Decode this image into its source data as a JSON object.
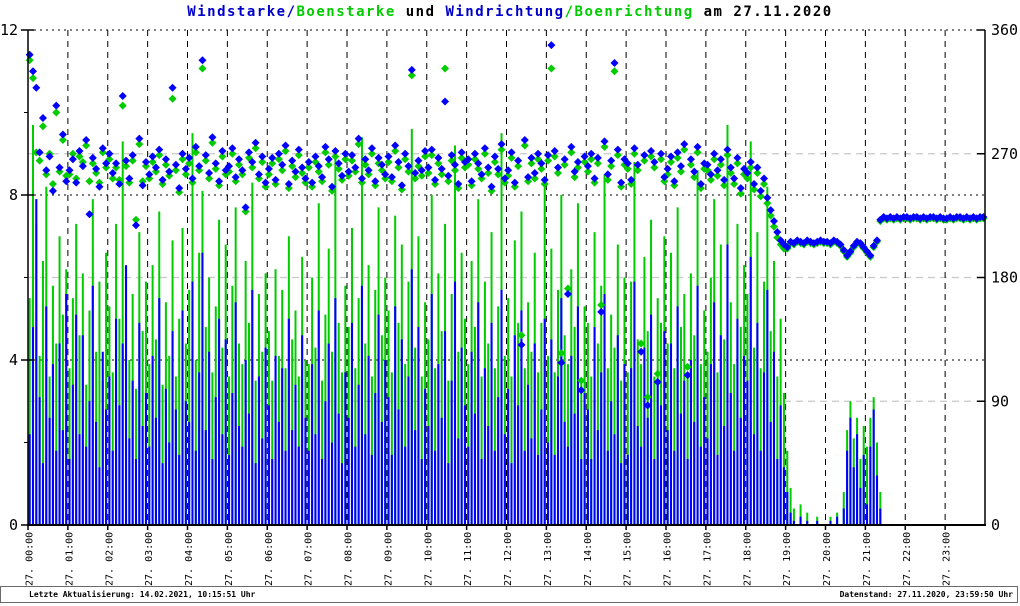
{
  "title": {
    "segments": [
      {
        "text": "Windstarke/",
        "color": "#0000cc"
      },
      {
        "text": "Boenstarke",
        "color": "#00cc00"
      },
      {
        "text": " und ",
        "color": "#000000"
      },
      {
        "text": "Windrichtung",
        "color": "#0000cc"
      },
      {
        "text": "/Boenrichtung",
        "color": "#00cc00"
      },
      {
        "text": " am 27.11.2020",
        "color": "#000000"
      }
    ]
  },
  "footer": {
    "left": "Letzte Aktualisierung: 14.02.2021, 10:15:51 Uhr",
    "right": "Datenstand: 27.11.2020, 23:59:50 Uhr"
  },
  "chart_data": {
    "type": "mixed",
    "title": "Windstarke/Boenstarke und Windrichtung/Boenrichtung am 27.11.2020",
    "x_axis": {
      "tick_labels": [
        "27. 00:00",
        "27. 01:00",
        "27. 02:00",
        "27. 03:00",
        "27. 04:00",
        "27. 05:00",
        "27. 06:00",
        "27. 07:00",
        "27. 08:00",
        "27. 09:00",
        "27. 10:00",
        "27. 11:00",
        "27. 12:00",
        "27. 13:00",
        "27. 14:00",
        "27. 15:00",
        "27. 16:00",
        "27. 17:00",
        "27. 18:00",
        "27. 19:00",
        "27. 20:00",
        "27. 21:00",
        "27. 22:00",
        "27. 23:00"
      ],
      "samples_per_hour": 12,
      "step_minutes": 5
    },
    "y_left": {
      "range": [
        0,
        12
      ],
      "ticks": [
        0,
        4,
        8,
        12
      ],
      "minor_ticks": [
        2,
        6,
        10
      ],
      "grid_style": "black-dotted"
    },
    "y_right": {
      "range": [
        0,
        360
      ],
      "ticks": [
        0,
        90,
        180,
        270,
        360
      ],
      "grid_style": "gray-dashed",
      "grid_color": "#c8c8c8"
    },
    "grid": {
      "vertical_hour_lines": "black-dashed"
    },
    "series": [
      {
        "name": "Windstarke",
        "type": "impulse",
        "axis": "left",
        "color": "#0000ff",
        "values": [
          2.2,
          4.8,
          7.9,
          3.1,
          1.5,
          5.3,
          2.6,
          3.9,
          1.8,
          4.4,
          2.3,
          5.6,
          1.6,
          3.4,
          5.1,
          2.2,
          4.6,
          1.9,
          3.0,
          5.8,
          2.5,
          1.4,
          4.2,
          2.8,
          3.6,
          1.8,
          5.0,
          2.9,
          4.4,
          6.3,
          2.1,
          3.5,
          1.6,
          4.9,
          2.4,
          3.2,
          1.9,
          4.1,
          2.6,
          5.5,
          1.5,
          3.3,
          2.0,
          4.7,
          2.8,
          1.7,
          5.2,
          3.0,
          2.5,
          5.9,
          1.8,
          3.7,
          6.6,
          2.3,
          4.2,
          1.6,
          3.1,
          5.0,
          2.2,
          4.5,
          1.7,
          3.2,
          5.4,
          2.4,
          1.9,
          4.0,
          2.7,
          5.7,
          1.5,
          3.6,
          2.1,
          4.3,
          2.9,
          1.6,
          4.1,
          2.5,
          3.8,
          1.8,
          5.0,
          2.3,
          3.4,
          1.9,
          4.6,
          2.6,
          1.8,
          3.9,
          2.2,
          5.2,
          1.6,
          3.0,
          4.4,
          2.0,
          5.5,
          2.7,
          1.5,
          3.7,
          2.6,
          4.9,
          1.9,
          3.4,
          5.8,
          2.2,
          4.1,
          1.7,
          3.2,
          5.1,
          2.5,
          4.0,
          3.1,
          1.7,
          5.3,
          2.8,
          4.5,
          1.9,
          3.6,
          6.2,
          2.3,
          4.8,
          1.6,
          3.3,
          2.4,
          5.6,
          1.8,
          3.9,
          2.6,
          4.7,
          1.5,
          3.5,
          5.9,
          2.1,
          4.3,
          2.9,
          1.9,
          4.2,
          2.7,
          5.4,
          1.6,
          3.8,
          2.4,
          4.9,
          1.8,
          3.1,
          5.7,
          2.2,
          3.3,
          1.5,
          4.6,
          2.9,
          5.2,
          1.8,
          3.4,
          2.1,
          4.4,
          1.7,
          2.8,
          5.0,
          2.0,
          4.5,
          1.7,
          3.6,
          5.5,
          2.5,
          1.9,
          4.1,
          2.7,
          5.3,
          1.6,
          3.2,
          2.8,
          1.6,
          4.8,
          2.3,
          3.7,
          5.6,
          1.8,
          3.0,
          2.2,
          4.6,
          1.5,
          3.9,
          1.7,
          3.8,
          5.9,
          2.4,
          1.9,
          4.3,
          2.6,
          5.1,
          1.6,
          3.4,
          2.9,
          4.7,
          2.3,
          4.4,
          1.8,
          5.3,
          2.7,
          3.5,
          1.6,
          4.0,
          2.5,
          5.8,
          1.9,
          3.1,
          2.1,
          3.9,
          5.4,
          1.7,
          4.6,
          2.4,
          6.8,
          3.2,
          1.8,
          5.0,
          2.6,
          4.1,
          3.5,
          6.5,
          2.2,
          4.9,
          1.8,
          3.7,
          5.7,
          2.5,
          4.2,
          1.6,
          2.9,
          1.4,
          0.8,
          0.3,
          0.1,
          0,
          0.2,
          0,
          0.1,
          0,
          0,
          0.1,
          0,
          0,
          0,
          0.1,
          0,
          0.2,
          0,
          0.4,
          1.8,
          2.6,
          1.4,
          2.2,
          0.9,
          1.7,
          0.5,
          1.9,
          2.8,
          1.2,
          0.4,
          0,
          0,
          0,
          0,
          0,
          0,
          0,
          0,
          0,
          0,
          0,
          0,
          0,
          0,
          0,
          0,
          0,
          0,
          0,
          0,
          0,
          0,
          0,
          0,
          0,
          0,
          0,
          0,
          0,
          0,
          0
        ]
      },
      {
        "name": "Boenstarke",
        "type": "impulse",
        "axis": "left",
        "color": "#00cc00",
        "values": [
          5.5,
          9.7,
          7.3,
          4.1,
          6.4,
          8.2,
          3.6,
          5.8,
          4.4,
          7.0,
          5.1,
          6.2,
          3.8,
          5.5,
          7.3,
          4.6,
          6.1,
          3.4,
          5.2,
          7.9,
          4.2,
          5.9,
          3.5,
          6.6,
          5.3,
          3.7,
          7.3,
          5.0,
          9.3,
          6.2,
          4.0,
          5.6,
          3.3,
          7.1,
          4.7,
          5.9,
          3.9,
          6.3,
          4.5,
          7.6,
          3.4,
          5.4,
          4.1,
          6.9,
          3.6,
          5.0,
          7.2,
          4.4,
          5.7,
          9.5,
          4.0,
          6.6,
          8.1,
          4.8,
          6.0,
          3.7,
          5.3,
          7.4,
          4.3,
          6.8,
          3.6,
          5.8,
          7.7,
          4.4,
          3.9,
          6.4,
          4.9,
          8.3,
          3.5,
          5.6,
          4.2,
          6.1,
          4.7,
          3.5,
          6.2,
          4.1,
          5.7,
          3.8,
          7.0,
          4.5,
          5.2,
          3.6,
          6.5,
          4.0,
          3.9,
          6.0,
          4.3,
          7.8,
          3.5,
          5.1,
          6.7,
          4.2,
          9.0,
          4.9,
          3.7,
          5.8,
          4.8,
          7.2,
          3.8,
          5.5,
          9.4,
          4.4,
          6.3,
          3.6,
          5.7,
          7.7,
          4.6,
          6.0,
          5.2,
          3.7,
          7.5,
          4.9,
          6.8,
          3.9,
          5.9,
          9.6,
          4.3,
          7.0,
          3.6,
          5.4,
          4.5,
          8.0,
          3.8,
          6.1,
          4.7,
          7.3,
          3.5,
          5.6,
          9.2,
          4.2,
          6.6,
          5.0,
          3.9,
          6.4,
          4.8,
          7.9,
          3.6,
          5.9,
          4.4,
          7.1,
          3.8,
          5.3,
          9.5,
          4.1,
          5.5,
          3.6,
          6.9,
          4.9,
          7.6,
          3.8,
          5.4,
          4.2,
          6.6,
          3.7,
          4.9,
          8.4,
          4.1,
          6.7,
          3.7,
          5.7,
          8.0,
          4.6,
          3.9,
          6.2,
          4.8,
          7.8,
          3.5,
          5.3,
          4.9,
          3.6,
          7.1,
          4.4,
          5.8,
          8.5,
          3.8,
          5.1,
          4.3,
          6.8,
          3.5,
          6.0,
          3.7,
          5.9,
          8.8,
          4.5,
          3.9,
          6.5,
          4.7,
          7.4,
          3.6,
          5.5,
          4.9,
          7.0,
          4.4,
          6.6,
          3.8,
          7.7,
          4.8,
          5.6,
          3.6,
          6.1,
          4.6,
          8.6,
          3.9,
          5.2,
          4.2,
          6.0,
          7.9,
          3.7,
          6.8,
          4.5,
          9.7,
          5.4,
          3.9,
          7.3,
          4.8,
          6.3,
          5.6,
          9.3,
          4.3,
          7.1,
          3.8,
          5.9,
          8.2,
          4.7,
          6.4,
          3.6,
          5.0,
          3.2,
          1.8,
          0.9,
          0.4,
          0,
          0.5,
          0,
          0.3,
          0,
          0,
          0.2,
          0,
          0,
          0,
          0.2,
          0,
          0.3,
          0,
          0.8,
          2.3,
          3.0,
          2.1,
          2.6,
          1.6,
          2.4,
          1.9,
          2.6,
          3.1,
          2.0,
          0.8,
          0,
          0,
          0,
          0,
          0,
          0,
          0,
          0,
          0,
          0,
          0,
          0,
          0,
          0,
          0,
          0,
          0,
          0,
          0,
          0,
          0,
          0,
          0,
          0,
          0,
          0,
          0,
          0,
          0,
          0,
          0
        ]
      },
      {
        "name": "Windrichtung",
        "type": "scatter",
        "marker": "diamond",
        "axis": "right",
        "color": "#0000ff",
        "values": [
          342,
          330,
          318,
          271,
          296,
          258,
          268,
          243,
          305,
          260,
          284,
          250,
          258,
          266,
          249,
          272,
          261,
          280,
          226,
          267,
          259,
          246,
          274,
          263,
          270,
          256,
          263,
          248,
          312,
          265,
          252,
          269,
          218,
          281,
          247,
          264,
          255,
          268,
          260,
          273,
          251,
          266,
          257,
          318,
          262,
          245,
          270,
          259,
          267,
          252,
          275,
          261,
          338,
          269,
          256,
          282,
          263,
          250,
          272,
          258,
          261,
          274,
          253,
          266,
          258,
          231,
          271,
          264,
          278,
          255,
          268,
          249,
          259,
          267,
          251,
          270,
          262,
          276,
          248,
          265,
          257,
          273,
          260,
          252,
          264,
          249,
          268,
          261,
          253,
          275,
          266,
          246,
          272,
          263,
          254,
          270,
          257,
          269,
          260,
          281,
          252,
          266,
          258,
          274,
          250,
          267,
          262,
          255,
          268,
          253,
          276,
          264,
          247,
          270,
          261,
          331,
          256,
          265,
          258,
          272,
          260,
          273,
          251,
          267,
          259,
          308,
          254,
          269,
          262,
          248,
          271,
          264,
          266,
          250,
          270,
          263,
          255,
          274,
          260,
          246,
          268,
          259,
          277,
          252,
          258,
          271,
          249,
          265,
          131,
          280,
          253,
          267,
          256,
          270,
          263,
          251,
          269,
          349,
          272,
          260,
          118,
          266,
          168,
          275,
          257,
          264,
          98,
          268,
          261,
          270,
          252,
          267,
          155,
          279,
          255,
          265,
          336,
          273,
          249,
          266,
          263,
          251,
          274,
          262,
          126,
          269,
          87,
          272,
          264,
          104,
          270,
          253,
          259,
          268,
          250,
          271,
          261,
          277,
          109,
          266,
          257,
          275,
          248,
          263,
          262,
          255,
          270,
          258,
          266,
          251,
          273,
          260,
          252,
          267,
          245,
          259,
          256,
          264,
          248,
          260,
          243,
          252,
          238,
          229,
          221,
          213,
          207,
          204,
          202,
          206,
          205,
          207,
          206,
          205,
          207,
          206,
          205,
          206,
          207,
          206,
          206,
          205,
          207,
          206,
          204,
          200,
          196,
          199,
          203,
          206,
          205,
          202,
          199,
          196,
          203,
          207,
          222,
          224,
          223,
          224,
          223,
          224,
          223,
          224,
          224,
          223,
          224,
          224,
          223,
          224,
          223,
          224,
          224,
          223,
          224,
          223,
          223,
          224,
          223,
          224,
          224,
          223,
          224,
          223,
          224,
          223,
          224,
          224
        ]
      },
      {
        "name": "Boenrichtung",
        "type": "scatter",
        "marker": "diamond",
        "axis": "right",
        "color": "#00cc00",
        "values": [
          338,
          325,
          271,
          265,
          290,
          255,
          270,
          248,
          300,
          257,
          280,
          254,
          255,
          270,
          252,
          268,
          264,
          276,
          250,
          263,
          256,
          249,
          271,
          260,
          266,
          252,
          260,
          251,
          305,
          261,
          249,
          265,
          222,
          277,
          250,
          261,
          252,
          264,
          257,
          269,
          248,
          262,
          254,
          310,
          258,
          242,
          266,
          255,
          263,
          249,
          271,
          258,
          332,
          265,
          252,
          278,
          259,
          247,
          268,
          255,
          257,
          270,
          250,
          262,
          255,
          228,
          267,
          260,
          274,
          252,
          264,
          246,
          255,
          263,
          248,
          266,
          258,
          272,
          245,
          261,
          253,
          269,
          256,
          249,
          260,
          246,
          264,
          257,
          250,
          271,
          262,
          243,
          268,
          259,
          251,
          266,
          254,
          265,
          257,
          277,
          249,
          262,
          255,
          270,
          247,
          263,
          258,
          252,
          264,
          250,
          272,
          260,
          244,
          266,
          257,
          327,
          252,
          261,
          254,
          268,
          256,
          269,
          248,
          263,
          255,
          332,
          250,
          265,
          258,
          245,
          267,
          260,
          262,
          247,
          266,
          259,
          252,
          270,
          256,
          243,
          264,
          255,
          273,
          249,
          254,
          267,
          246,
          261,
          138,
          276,
          250,
          263,
          252,
          266,
          259,
          248,
          265,
          332,
          268,
          256,
          125,
          262,
          172,
          271,
          253,
          260,
          105,
          264,
          257,
          266,
          249,
          263,
          160,
          275,
          251,
          261,
          330,
          269,
          246,
          262,
          259,
          248,
          270,
          258,
          132,
          265,
          93,
          268,
          260,
          110,
          266,
          250,
          255,
          264,
          247,
          267,
          257,
          273,
          115,
          262,
          253,
          271,
          245,
          259,
          258,
          251,
          266,
          254,
          262,
          247,
          269,
          256,
          248,
          263,
          241,
          255,
          252,
          260,
          244,
          256,
          239,
          248,
          234,
          225,
          217,
          209,
          204,
          201,
          201,
          205,
          204,
          206,
          205,
          204,
          206,
          205,
          204,
          205,
          206,
          205,
          205,
          204,
          206,
          205,
          203,
          199,
          195,
          198,
          202,
          205,
          204,
          201,
          198,
          195,
          202,
          206,
          221,
          223,
          222,
          223,
          222,
          223,
          222,
          223,
          223,
          222,
          223,
          223,
          222,
          223,
          222,
          223,
          223,
          222,
          223,
          222,
          222,
          223,
          222,
          223,
          223,
          222,
          223,
          222,
          223,
          222,
          223,
          223
        ]
      }
    ]
  }
}
